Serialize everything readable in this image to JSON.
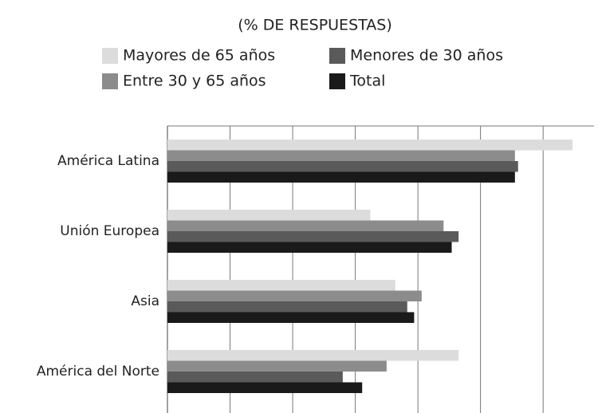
{
  "chart_data": {
    "type": "barh",
    "title": "(% DE RESPUESTAS)",
    "categories": [
      "América Latina",
      "Unión Europea",
      "Asia",
      "América del Norte"
    ],
    "series": [
      {
        "name": "Mayores de 65 años",
        "color": "#dcdcdc",
        "values": [
          64.7,
          32.4,
          36.4,
          46.5
        ]
      },
      {
        "name": "Entre 30 y 65 años",
        "color": "#8c8c8c",
        "values": [
          55.5,
          44.1,
          40.6,
          35.0
        ]
      },
      {
        "name": "Menores de 30 años",
        "color": "#5a5a5a",
        "values": [
          56.0,
          46.5,
          38.3,
          28.0
        ]
      },
      {
        "name": "Total",
        "color": "#1a1a1a",
        "values": [
          55.5,
          45.4,
          39.4,
          31.1
        ]
      }
    ],
    "xlim": [
      0,
      68
    ],
    "xticks": [
      0,
      10,
      20,
      30,
      40,
      50,
      60
    ],
    "grid": true
  }
}
